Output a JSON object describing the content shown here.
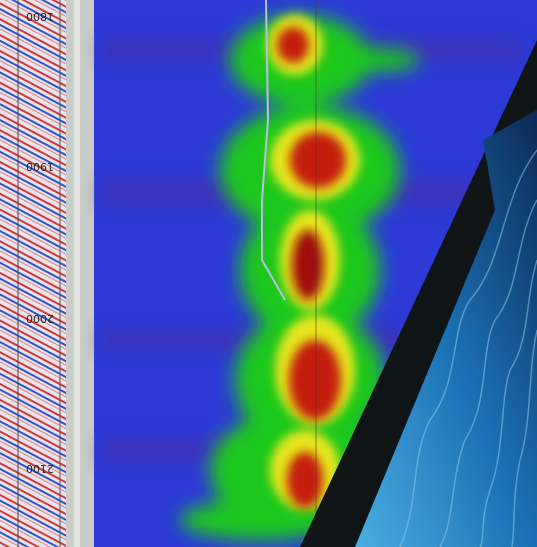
{
  "depth_labels": [
    "1800",
    "1900",
    "2000",
    "2100"
  ]
}
